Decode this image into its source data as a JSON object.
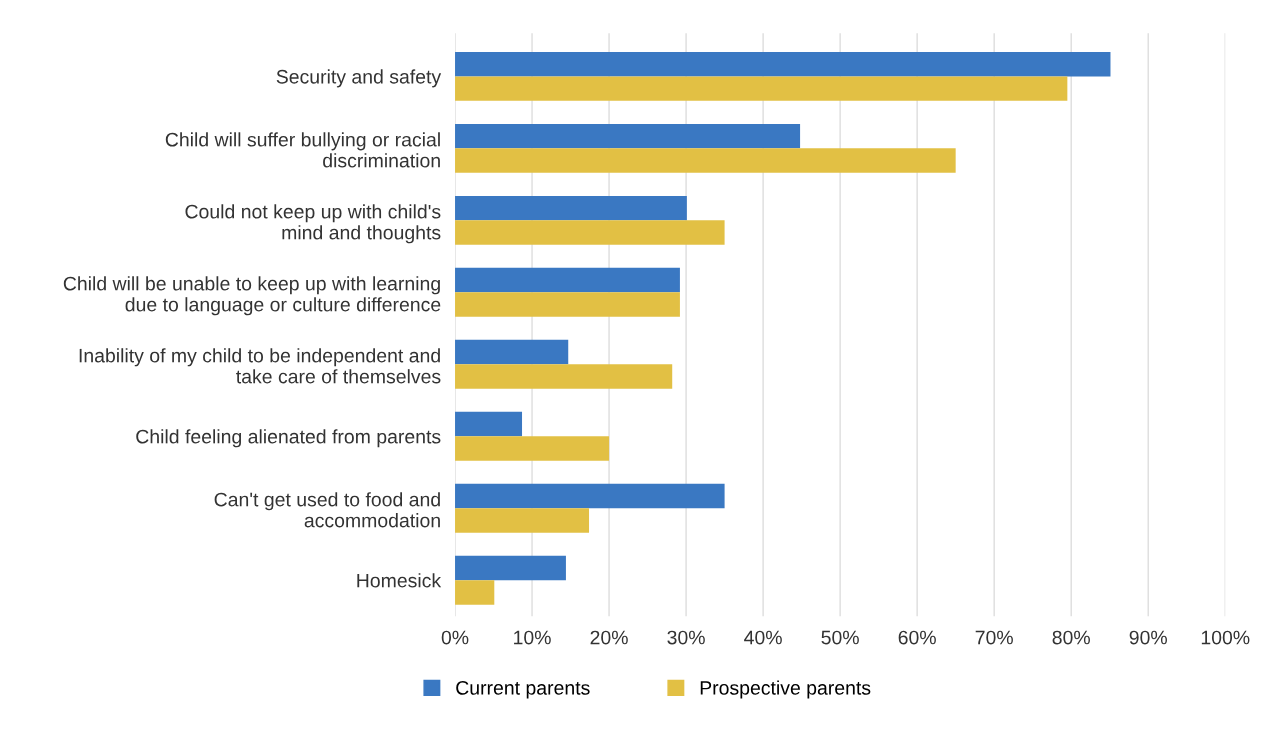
{
  "chart_data": {
    "type": "bar",
    "orientation": "horizontal",
    "categories": [
      "Security and safety",
      "Child will suffer bullying or racial\ndiscrimination",
      "Could not keep up with child's\nmind and thoughts",
      "Child will be unable to keep up with learning\ndue to language or culture difference",
      "Inability of my child to be independent and\ntake care of themselves",
      "Child feeling alienated from parents",
      "Can't get used to food and\naccommodation",
      "Homesick"
    ],
    "series": [
      {
        "name": "Current parents",
        "color": "#3a78c2",
        "values": [
          85.1,
          44.8,
          30.1,
          29.2,
          14.7,
          8.7,
          35,
          14.4
        ]
      },
      {
        "name": "Prospective parents",
        "color": "#e2c044",
        "values": [
          79.5,
          65,
          35,
          29.2,
          28.2,
          20,
          17.4,
          5.1
        ]
      }
    ],
    "xlim": [
      0,
      100
    ],
    "xticks": [
      {
        "value": 0,
        "label": "0%"
      },
      {
        "value": 10,
        "label": "10%"
      },
      {
        "value": 20,
        "label": "20%"
      },
      {
        "value": 30,
        "label": "30%"
      },
      {
        "value": 40,
        "label": "40%"
      },
      {
        "value": 50,
        "label": "50%"
      },
      {
        "value": 60,
        "label": "60%"
      },
      {
        "value": 70,
        "label": "70%"
      },
      {
        "value": 80,
        "label": "80%"
      },
      {
        "value": 90,
        "label": "90%"
      },
      {
        "value": 100,
        "label": "100%"
      }
    ],
    "grid": "x",
    "legend": "bottom"
  }
}
